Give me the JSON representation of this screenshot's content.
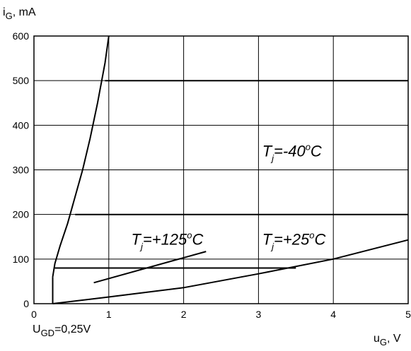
{
  "chart_data": {
    "type": "line",
    "x_ticks": [
      "0",
      "1",
      "2",
      "3",
      "4",
      "5"
    ],
    "y_ticks": [
      "0",
      "100",
      "200",
      "300",
      "400",
      "500",
      "600"
    ],
    "xlim": [
      0,
      5
    ],
    "ylim": [
      0,
      600
    ],
    "grid": true,
    "ylabel": {
      "main": "i",
      "sub": "G",
      "unit": ", mA"
    },
    "xlabel": {
      "main": "u",
      "sub": "G",
      "unit": ", V"
    },
    "note": {
      "main": "U",
      "sub": "GD",
      "rest": "=0,25V"
    },
    "series": [
      {
        "x": [
          0.25,
          0.28,
          0.35,
          0.45,
          0.55,
          0.65,
          0.75,
          0.85,
          0.95,
          1.0
        ],
        "y": [
          60,
          90,
          130,
          180,
          240,
          300,
          370,
          450,
          540,
          600
        ]
      },
      {
        "x": [
          0.25,
          0.25
        ],
        "y": [
          0,
          60
        ]
      },
      {
        "x": [
          0.25,
          1.0,
          2.0,
          3.0,
          4.0,
          5.0
        ],
        "y": [
          0,
          15,
          36,
          67,
          100,
          143
        ]
      },
      {
        "x": [
          0.95,
          5.0
        ],
        "y": [
          500,
          500
        ]
      },
      {
        "x": [
          0.55,
          5.0
        ],
        "y": [
          200,
          200
        ]
      },
      {
        "x": [
          0.28,
          3.5
        ],
        "y": [
          80,
          80
        ]
      },
      {
        "x": [
          0.8,
          2.3
        ],
        "y": [
          47,
          117
        ]
      }
    ],
    "annotations": [
      {
        "T": "T",
        "sub": "j",
        "value": "=-40",
        "sup": "o",
        "unit": "C",
        "x": 3.05,
        "y": 330
      },
      {
        "T": "T",
        "sub": "j",
        "value": "=+125",
        "sup": "o",
        "unit": "C",
        "x": 1.3,
        "y": 132
      },
      {
        "T": "T",
        "sub": "j",
        "value": "=+25",
        "sup": "o",
        "unit": "C",
        "x": 3.05,
        "y": 132
      }
    ]
  }
}
